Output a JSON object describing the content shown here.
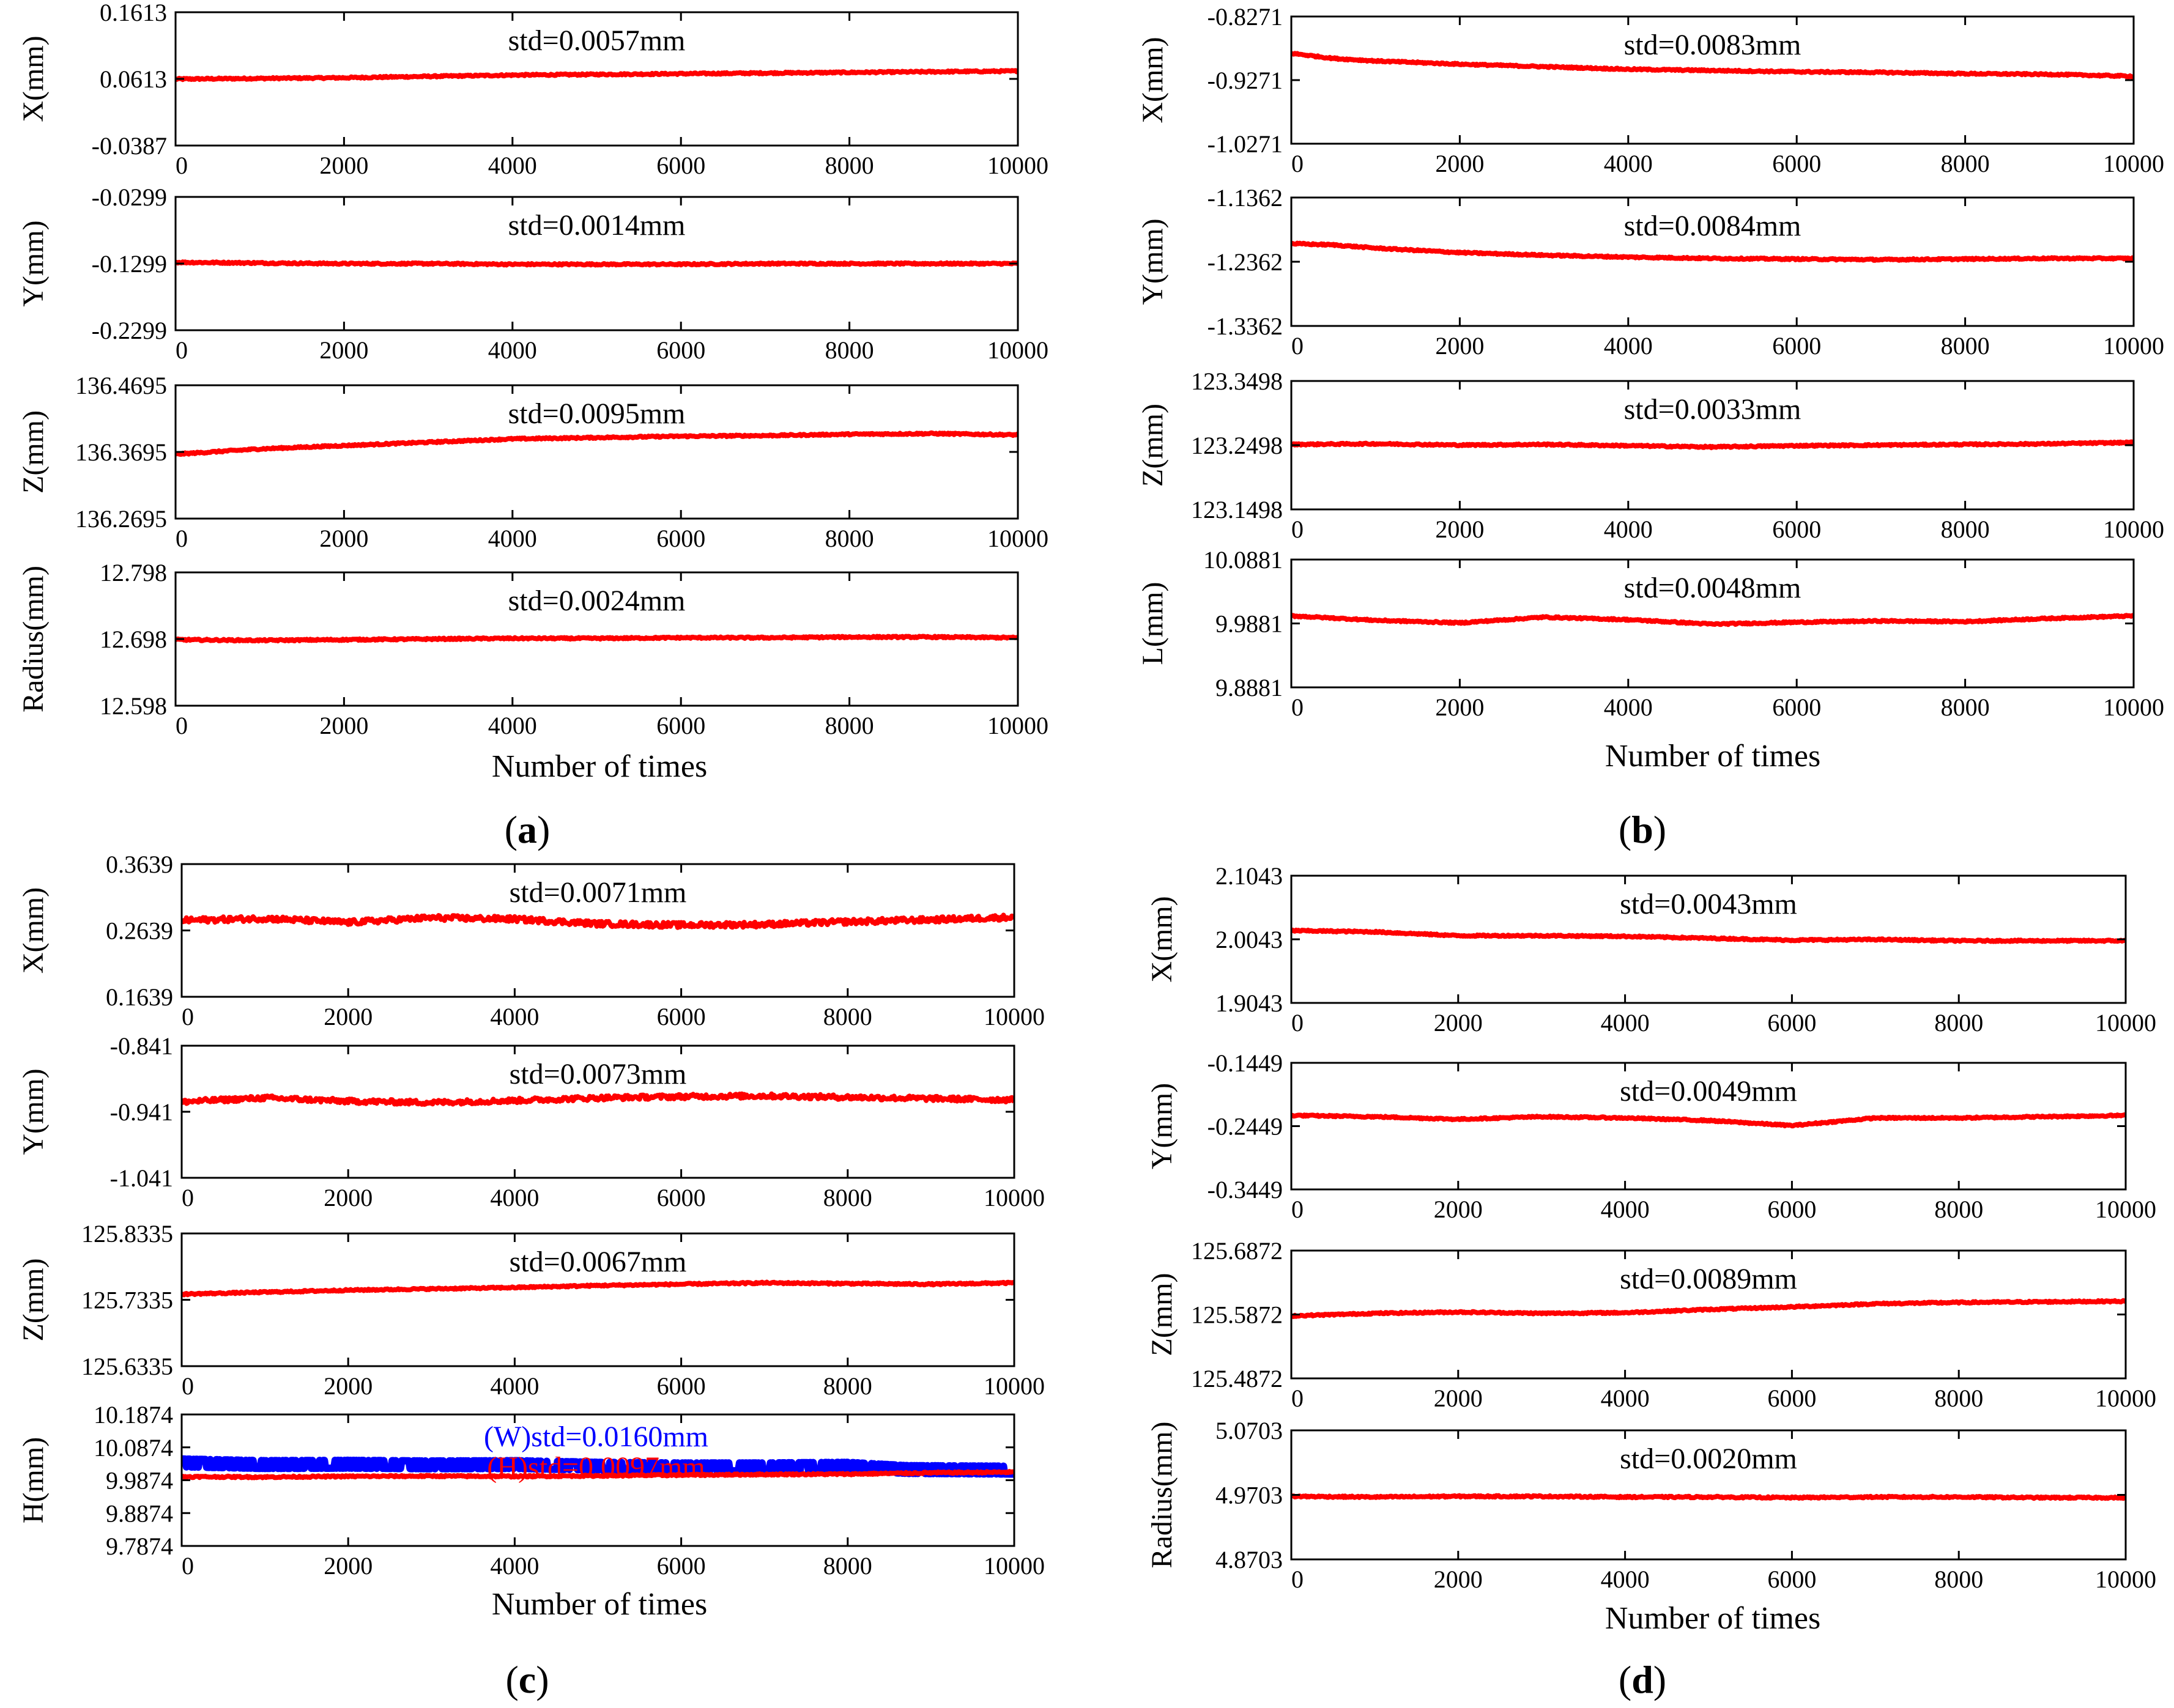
{
  "figure_title": "",
  "chart_data": [
    {
      "panel": "a",
      "type": "line",
      "ylabel": "X(mm)",
      "title": "std=0.0057mm",
      "xlim": [
        0,
        10000
      ],
      "ylim": [
        -0.0387,
        0.1613
      ],
      "xticks": [
        "0",
        "2000",
        "4000",
        "6000",
        "8000",
        "10000"
      ],
      "yticks": [
        "0.1613",
        "0.0613",
        "-0.0387"
      ],
      "series": [
        {
          "name": "X",
          "color": "#ff0000",
          "x": [
            0,
            1000,
            2000,
            3000,
            4000,
            5000,
            6000,
            7000,
            8000,
            9000,
            10000
          ],
          "values": [
            0.061,
            0.062,
            0.063,
            0.065,
            0.067,
            0.068,
            0.069,
            0.07,
            0.071,
            0.072,
            0.073
          ]
        }
      ]
    },
    {
      "panel": "a",
      "type": "line",
      "ylabel": "Y(mm)",
      "title": "std=0.0014mm",
      "xlim": [
        0,
        10000
      ],
      "ylim": [
        -0.2299,
        -0.0299
      ],
      "xticks": [
        "0",
        "2000",
        "4000",
        "6000",
        "8000",
        "10000"
      ],
      "yticks": [
        "-0.0299",
        "-0.1299",
        "-0.2299"
      ],
      "series": [
        {
          "name": "Y",
          "color": "#ff0000",
          "x": [
            0,
            1000,
            2000,
            3000,
            4000,
            5000,
            6000,
            7000,
            8000,
            9000,
            10000
          ],
          "values": [
            -0.128,
            -0.129,
            -0.13,
            -0.13,
            -0.131,
            -0.131,
            -0.131,
            -0.13,
            -0.13,
            -0.13,
            -0.13
          ]
        }
      ]
    },
    {
      "panel": "a",
      "type": "line",
      "ylabel": "Z(mm)",
      "title": "std=0.0095mm",
      "xlim": [
        0,
        10000
      ],
      "ylim": [
        136.2695,
        136.4695
      ],
      "xticks": [
        "0",
        "2000",
        "4000",
        "6000",
        "8000",
        "10000"
      ],
      "yticks": [
        "136.4695",
        "136.3695",
        "136.2695"
      ],
      "series": [
        {
          "name": "Z",
          "color": "#ff0000",
          "x": [
            0,
            1000,
            2000,
            3000,
            4000,
            5000,
            6000,
            7000,
            8000,
            9000,
            10000
          ],
          "values": [
            136.366,
            136.374,
            136.379,
            136.384,
            136.389,
            136.391,
            136.393,
            136.394,
            136.396,
            136.397,
            136.395
          ]
        }
      ]
    },
    {
      "panel": "a",
      "type": "line",
      "ylabel": "Radius(mm)",
      "title": "std=0.0024mm",
      "xlim": [
        0,
        10000
      ],
      "ylim": [
        12.598,
        12.798
      ],
      "xticks": [
        "0",
        "2000",
        "4000",
        "6000",
        "8000",
        "10000"
      ],
      "yticks": [
        "12.798",
        "12.698",
        "12.598"
      ],
      "series": [
        {
          "name": "Radius",
          "color": "#ff0000",
          "x": [
            0,
            1000,
            2000,
            3000,
            4000,
            5000,
            6000,
            7000,
            8000,
            9000,
            10000
          ],
          "values": [
            12.697,
            12.696,
            12.697,
            12.698,
            12.699,
            12.699,
            12.7,
            12.7,
            12.701,
            12.701,
            12.7
          ]
        }
      ]
    },
    {
      "panel": "b",
      "type": "line",
      "ylabel": "X(mm)",
      "title": "std=0.0083mm",
      "xlim": [
        0,
        10000
      ],
      "ylim": [
        -1.0271,
        -0.8271
      ],
      "xticks": [
        "0",
        "2000",
        "4000",
        "6000",
        "8000",
        "10000"
      ],
      "yticks": [
        "-0.8271",
        "-0.9271",
        "-1.0271"
      ],
      "series": [
        {
          "name": "X",
          "color": "#ff0000",
          "x": [
            0,
            500,
            1000,
            2000,
            3000,
            4000,
            5000,
            6000,
            7000,
            8000,
            9000,
            10000
          ],
          "values": [
            -0.885,
            -0.893,
            -0.897,
            -0.902,
            -0.906,
            -0.91,
            -0.912,
            -0.914,
            -0.915,
            -0.917,
            -0.918,
            -0.921
          ]
        }
      ]
    },
    {
      "panel": "b",
      "type": "line",
      "ylabel": "Y(mm)",
      "title": "std=0.0084mm",
      "xlim": [
        0,
        10000
      ],
      "ylim": [
        -1.3362,
        -1.1362
      ],
      "xticks": [
        "0",
        "2000",
        "4000",
        "6000",
        "8000",
        "10000"
      ],
      "yticks": [
        "-1.1362",
        "-1.2362",
        "-1.3362"
      ],
      "series": [
        {
          "name": "Y",
          "color": "#ff0000",
          "x": [
            0,
            500,
            1000,
            2000,
            3000,
            4000,
            5000,
            6000,
            7000,
            8000,
            9000,
            10000
          ],
          "values": [
            -1.208,
            -1.21,
            -1.215,
            -1.222,
            -1.226,
            -1.229,
            -1.231,
            -1.232,
            -1.233,
            -1.232,
            -1.231,
            -1.231
          ]
        }
      ]
    },
    {
      "panel": "b",
      "type": "line",
      "ylabel": "Z(mm)",
      "title": "std=0.0033mm",
      "xlim": [
        0,
        10000
      ],
      "ylim": [
        123.1498,
        123.3498
      ],
      "xticks": [
        "0",
        "2000",
        "4000",
        "6000",
        "8000",
        "10000"
      ],
      "yticks": [
        "123.3498",
        "123.2498",
        "123.1498"
      ],
      "series": [
        {
          "name": "Z",
          "color": "#ff0000",
          "x": [
            0,
            1000,
            2000,
            3000,
            4000,
            5000,
            6000,
            7000,
            8000,
            9000,
            10000
          ],
          "values": [
            123.251,
            123.252,
            123.25,
            123.251,
            123.249,
            123.247,
            123.249,
            123.25,
            123.251,
            123.252,
            123.254
          ]
        }
      ]
    },
    {
      "panel": "b",
      "type": "line",
      "ylabel": "L(mm)",
      "title": "std=0.0048mm",
      "xlim": [
        0,
        10000
      ],
      "ylim": [
        9.8881,
        10.0881
      ],
      "xticks": [
        "0",
        "2000",
        "4000",
        "6000",
        "8000",
        "10000"
      ],
      "yticks": [
        "10.0881",
        "9.9881",
        "9.8881"
      ],
      "series": [
        {
          "name": "L",
          "color": "#ff0000",
          "x": [
            0,
            1000,
            2000,
            3000,
            4000,
            5000,
            6000,
            7000,
            8000,
            9000,
            10000
          ],
          "values": [
            10.0,
            9.993,
            9.989,
            9.998,
            9.994,
            9.987,
            9.99,
            9.992,
            9.991,
            9.996,
            10.0
          ]
        }
      ]
    },
    {
      "panel": "c",
      "type": "line",
      "ylabel": "X(mm)",
      "title": "std=0.0071mm",
      "xlim": [
        0,
        10000
      ],
      "ylim": [
        0.1639,
        0.3639
      ],
      "xticks": [
        "0",
        "2000",
        "4000",
        "6000",
        "8000",
        "10000"
      ],
      "yticks": [
        "0.3639",
        "0.2639",
        "0.1639"
      ],
      "series": [
        {
          "name": "X",
          "color": "#ff0000",
          "x": [
            0,
            1000,
            2000,
            3000,
            4000,
            5000,
            6000,
            7000,
            8000,
            9000,
            10000
          ],
          "values": [
            0.279,
            0.282,
            0.276,
            0.283,
            0.281,
            0.274,
            0.272,
            0.273,
            0.277,
            0.28,
            0.284
          ]
        }
      ]
    },
    {
      "panel": "c",
      "type": "line",
      "ylabel": "Y(mm)",
      "title": "std=0.0073mm",
      "xlim": [
        0,
        10000
      ],
      "ylim": [
        -1.041,
        -0.841
      ],
      "xticks": [
        "0",
        "2000",
        "4000",
        "6000",
        "8000",
        "10000"
      ],
      "yticks": [
        "-0.841",
        "-0.941",
        "-1.041"
      ],
      "series": [
        {
          "name": "Y",
          "color": "#ff0000",
          "x": [
            0,
            1000,
            2000,
            3000,
            4000,
            5000,
            6000,
            7000,
            8000,
            9000,
            10000
          ],
          "values": [
            -0.926,
            -0.92,
            -0.925,
            -0.927,
            -0.924,
            -0.92,
            -0.918,
            -0.917,
            -0.919,
            -0.921,
            -0.923
          ]
        }
      ]
    },
    {
      "panel": "c",
      "type": "line",
      "ylabel": "Z(mm)",
      "title": "std=0.0067mm",
      "xlim": [
        0,
        10000
      ],
      "ylim": [
        125.6335,
        125.8335
      ],
      "xticks": [
        "0",
        "2000",
        "4000",
        "6000",
        "8000",
        "10000"
      ],
      "yticks": [
        "125.8335",
        "125.7335",
        "125.6335"
      ],
      "series": [
        {
          "name": "Z",
          "color": "#ff0000",
          "x": [
            0,
            1000,
            2000,
            3000,
            4000,
            5000,
            6000,
            7000,
            8000,
            9000,
            10000
          ],
          "values": [
            125.742,
            125.745,
            125.748,
            125.75,
            125.752,
            125.755,
            125.757,
            125.759,
            125.758,
            125.757,
            125.759
          ]
        }
      ]
    },
    {
      "panel": "c",
      "type": "line",
      "ylabel": "H(mm)",
      "xlim": [
        0,
        10000
      ],
      "ylim": [
        9.7874,
        10.1874
      ],
      "xticks": [
        "0",
        "2000",
        "4000",
        "6000",
        "8000",
        "10000"
      ],
      "yticks": [
        "10.1874",
        "10.0874",
        "9.9874",
        "9.8874",
        "9.7874"
      ],
      "annotations": [
        {
          "text": "(W)std=0.0160mm",
          "color": "#0000ff"
        },
        {
          "text": "(H)std=0.0097mm",
          "color": "#ff0000"
        }
      ],
      "series": [
        {
          "name": "W",
          "color": "#0000ff",
          "x": [
            0,
            1000,
            2000,
            3000,
            4000,
            5000,
            6000,
            7000,
            8000,
            8700,
            10000
          ],
          "values": [
            10.04,
            10.035,
            10.036,
            10.034,
            10.035,
            10.03,
            10.028,
            10.028,
            10.03,
            10.02,
            10.018
          ]
        },
        {
          "name": "H",
          "color": "#ff0000",
          "x": [
            0,
            1000,
            2000,
            3000,
            4000,
            5000,
            6000,
            7000,
            8000,
            9000,
            10000
          ],
          "values": [
            9.998,
            9.997,
            9.999,
            10.0,
            9.999,
            10.001,
            10.003,
            10.005,
            10.006,
            10.01,
            10.012
          ]
        }
      ]
    },
    {
      "panel": "d",
      "type": "line",
      "ylabel": "X(mm)",
      "title": "std=0.0043mm",
      "xlim": [
        0,
        10000
      ],
      "ylim": [
        1.9043,
        2.1043
      ],
      "xticks": [
        "0",
        "2000",
        "4000",
        "6000",
        "8000",
        "10000"
      ],
      "yticks": [
        "2.1043",
        "2.0043",
        "1.9043"
      ],
      "series": [
        {
          "name": "X",
          "color": "#ff0000",
          "x": [
            0,
            1000,
            2000,
            3000,
            4000,
            5000,
            6000,
            7000,
            8000,
            9000,
            10000
          ],
          "values": [
            2.018,
            2.016,
            2.01,
            2.01,
            2.009,
            2.006,
            2.003,
            2.004,
            2.002,
            2.002,
            2.002
          ]
        }
      ]
    },
    {
      "panel": "d",
      "type": "line",
      "ylabel": "Y(mm)",
      "title": "std=0.0049mm",
      "xlim": [
        0,
        10000
      ],
      "ylim": [
        -0.3449,
        -0.1449
      ],
      "xticks": [
        "0",
        "2000",
        "4000",
        "6000",
        "8000",
        "10000"
      ],
      "yticks": [
        "-0.1449",
        "-0.2449",
        "-0.3449"
      ],
      "series": [
        {
          "name": "Y",
          "color": "#ff0000",
          "x": [
            0,
            1000,
            2000,
            3000,
            4000,
            5000,
            6000,
            7000,
            8000,
            9000,
            10000
          ],
          "values": [
            -0.228,
            -0.23,
            -0.234,
            -0.23,
            -0.232,
            -0.236,
            -0.244,
            -0.232,
            -0.232,
            -0.23,
            -0.228
          ]
        }
      ]
    },
    {
      "panel": "d",
      "type": "line",
      "ylabel": "Z(mm)",
      "title": "std=0.0089mm",
      "xlim": [
        0,
        10000
      ],
      "ylim": [
        125.4872,
        125.6872
      ],
      "xticks": [
        "0",
        "2000",
        "4000",
        "6000",
        "8000",
        "10000"
      ],
      "yticks": [
        "125.6872",
        "125.5872",
        "125.4872"
      ],
      "series": [
        {
          "name": "Z",
          "color": "#ff0000",
          "x": [
            0,
            1000,
            2000,
            3000,
            4000,
            5000,
            6000,
            7000,
            8000,
            9000,
            10000
          ],
          "values": [
            125.585,
            125.589,
            125.591,
            125.589,
            125.59,
            125.595,
            125.599,
            125.604,
            125.606,
            125.607,
            125.608
          ]
        }
      ]
    },
    {
      "panel": "d",
      "type": "line",
      "ylabel": "Radius(mm)",
      "title": "std=0.0020mm",
      "xlim": [
        0,
        10000
      ],
      "ylim": [
        4.8703,
        5.0703
      ],
      "xticks": [
        "0",
        "2000",
        "4000",
        "6000",
        "8000",
        "10000"
      ],
      "yticks": [
        "5.0703",
        "4.9703",
        "4.8703"
      ],
      "series": [
        {
          "name": "Radius",
          "color": "#ff0000",
          "x": [
            0,
            1000,
            2000,
            3000,
            4000,
            5000,
            6000,
            7000,
            8000,
            9000,
            10000
          ],
          "values": [
            4.968,
            4.967,
            4.968,
            4.968,
            4.967,
            4.967,
            4.966,
            4.967,
            4.967,
            4.966,
            4.966
          ]
        }
      ]
    }
  ],
  "xlabel": "Number of times",
  "panel_labels": [
    {
      "open": "(",
      "letter": "a",
      "close": ")"
    },
    {
      "open": "(",
      "letter": "b",
      "close": ")"
    },
    {
      "open": "(",
      "letter": "c",
      "close": ")"
    },
    {
      "open": "(",
      "letter": "d",
      "close": ")"
    }
  ]
}
